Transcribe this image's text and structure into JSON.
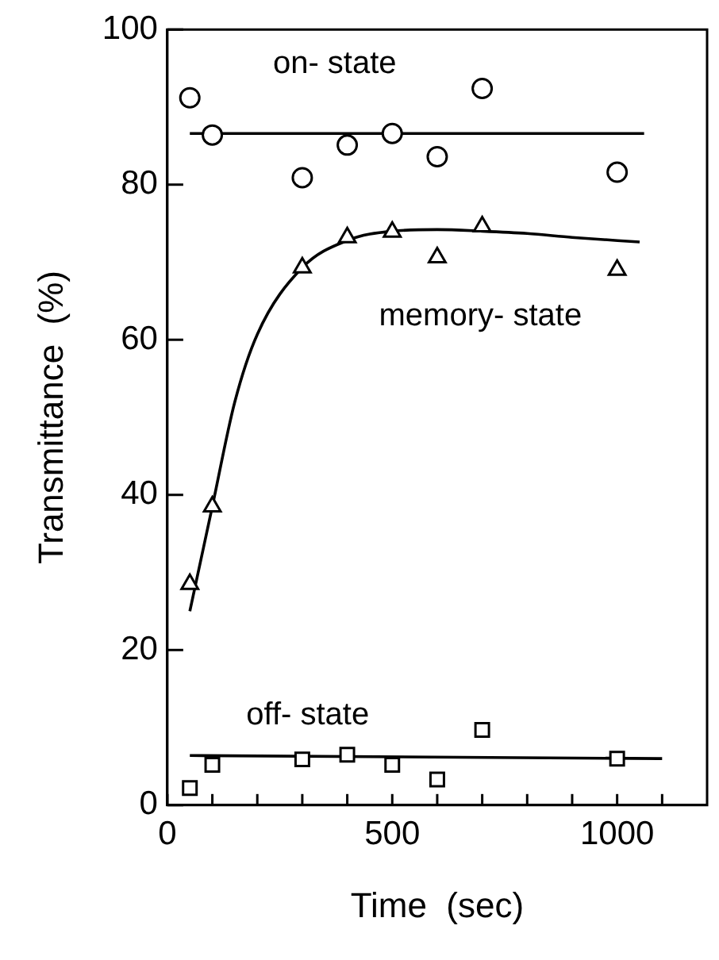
{
  "chart_data": {
    "type": "scatter",
    "xlabel": "Time  (sec)",
    "ylabel": "Transmittance  (%)",
    "xlim": [
      0,
      1200
    ],
    "ylim": [
      0,
      100
    ],
    "xticks": [
      0,
      {
        "value": 100,
        "label": null
      },
      {
        "value": 200,
        "label": null
      },
      {
        "value": 300,
        "label": null
      },
      {
        "value": 400,
        "label": null
      },
      500,
      {
        "value": 600,
        "label": null
      },
      {
        "value": 700,
        "label": null
      },
      {
        "value": 800,
        "label": null
      },
      {
        "value": 900,
        "label": null
      },
      1000,
      {
        "value": 1100,
        "label": null
      }
    ],
    "yticks": [
      0,
      20,
      40,
      60,
      80,
      100
    ],
    "grid": false,
    "legend": false,
    "series": [
      {
        "marker": "circle",
        "color": "#000000",
        "x": [
          50,
          100,
          300,
          400,
          500,
          600,
          700,
          1000
        ],
        "values": [
          91.2,
          86.4,
          80.9,
          85.1,
          86.6,
          83.6,
          92.4,
          81.6
        ]
      },
      {
        "type": "line",
        "marker": "none",
        "color": "#000000",
        "x": [
          50,
          1060
        ],
        "values": [
          86.6,
          86.6
        ]
      },
      {
        "marker": "triangle",
        "color": "#000000",
        "x": [
          50,
          100,
          300,
          400,
          500,
          600,
          700,
          1000
        ],
        "values": [
          28.5,
          38.5,
          69.3,
          73.2,
          73.9,
          70.6,
          74.6,
          69.0
        ]
      },
      {
        "type": "line",
        "marker": "none",
        "color": "#000000",
        "x": [
          50,
          100,
          150,
          200,
          300,
          400,
          500,
          600,
          700,
          800,
          900,
          1050
        ],
        "values": [
          25,
          38.5,
          52,
          60.7,
          69.3,
          72.8,
          74,
          74.2,
          74,
          73.7,
          73.2,
          72.6
        ]
      },
      {
        "marker": "square",
        "color": "#000000",
        "x": [
          50,
          100,
          300,
          400,
          500,
          600,
          700,
          1000
        ],
        "values": [
          2.2,
          5.2,
          5.9,
          6.5,
          5.2,
          3.3,
          9.7,
          6.0
        ]
      },
      {
        "type": "line",
        "marker": "none",
        "color": "#000000",
        "x": [
          50,
          1100
        ],
        "values": [
          6.4,
          6.0
        ]
      }
    ],
    "annotations": [
      "on- state",
      "memory- state",
      "off- state"
    ]
  }
}
